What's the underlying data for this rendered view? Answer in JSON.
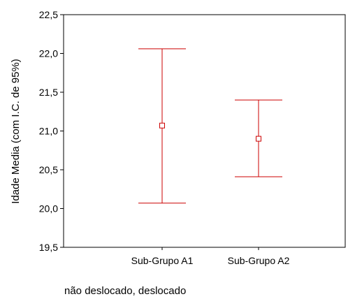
{
  "chart_data": {
    "type": "errorbar",
    "categories": [
      "Sub-Grupo A1",
      "Sub-Grupo A2"
    ],
    "series": [
      {
        "mean": [
          21.07,
          20.9
        ],
        "lower": [
          20.07,
          20.41
        ],
        "upper": [
          22.06,
          21.4
        ]
      }
    ],
    "ylabel": "Idade Media (com I.C. de 95%)",
    "xlabel": "não deslocado, deslocado",
    "ylim": [
      19.5,
      22.5
    ],
    "yticks": [
      19.5,
      20.0,
      20.5,
      21.0,
      21.5,
      22.0,
      22.5
    ],
    "ytick_labels": [
      "19,5",
      "20,0",
      "20,5",
      "21,0",
      "21,5",
      "22,0",
      "22,5"
    ],
    "grid": false,
    "colors": {
      "series": "#cc0000",
      "axis": "#000000"
    }
  }
}
